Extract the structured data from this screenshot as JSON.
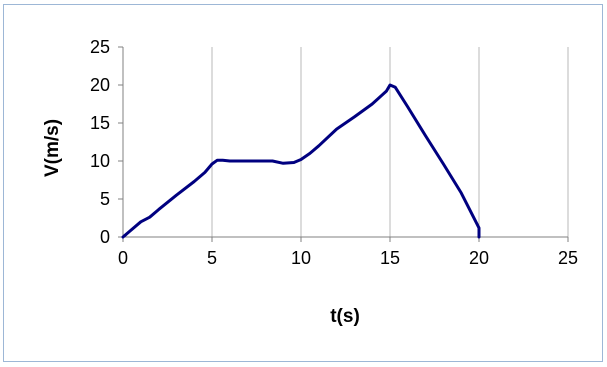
{
  "chart_data": {
    "type": "line",
    "title": "",
    "xlabel": "t(s)",
    "ylabel": "V(m/s)",
    "xlim": [
      0,
      25
    ],
    "ylim": [
      0,
      25
    ],
    "x_ticks": [
      "0",
      "5",
      "10",
      "15",
      "20",
      "25"
    ],
    "y_ticks": [
      "0",
      "5",
      "10",
      "15",
      "20",
      "25"
    ],
    "grid": "vertical",
    "legend": "none",
    "series": [
      {
        "color": "#000080",
        "points": [
          [
            0,
            0
          ],
          [
            1,
            2
          ],
          [
            1.5,
            2.6
          ],
          [
            2,
            3.6
          ],
          [
            3,
            5.5
          ],
          [
            4,
            7.3
          ],
          [
            4.6,
            8.5
          ],
          [
            5,
            9.6
          ],
          [
            5.3,
            10.1
          ],
          [
            5.6,
            10.1
          ],
          [
            6,
            10
          ],
          [
            7,
            10
          ],
          [
            8.4,
            10
          ],
          [
            9,
            9.7
          ],
          [
            9.6,
            9.8
          ],
          [
            10,
            10.2
          ],
          [
            10.5,
            11
          ],
          [
            11,
            12
          ],
          [
            12,
            14.2
          ],
          [
            13,
            15.8
          ],
          [
            14,
            17.5
          ],
          [
            14.8,
            19.2
          ],
          [
            15,
            20
          ],
          [
            15.3,
            19.7
          ],
          [
            16,
            17.1
          ],
          [
            17,
            13.3
          ],
          [
            18,
            9.6
          ],
          [
            19,
            5.8
          ],
          [
            20,
            1.2
          ],
          [
            20,
            0
          ]
        ]
      }
    ]
  }
}
